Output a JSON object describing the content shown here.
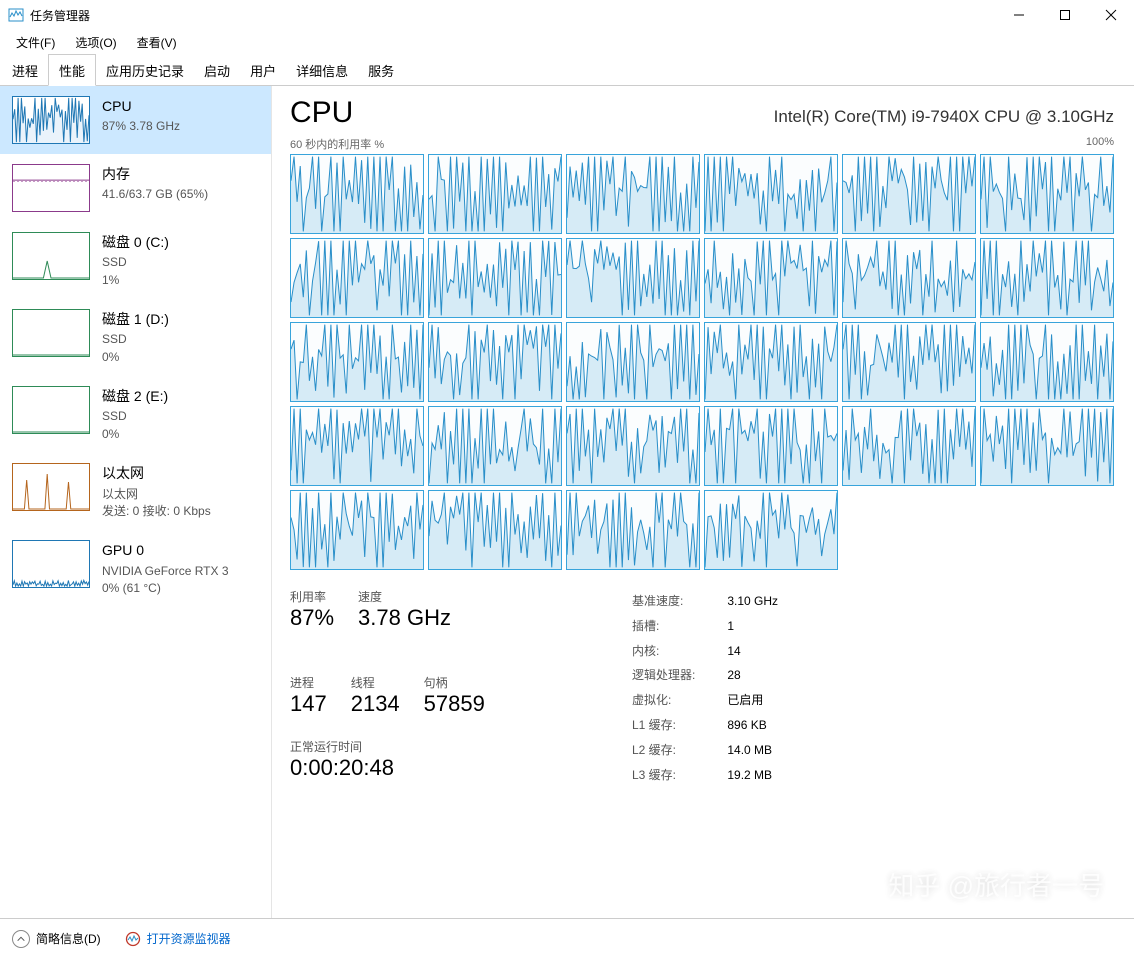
{
  "window": {
    "title": "任务管理器",
    "menus": [
      "文件(F)",
      "选项(O)",
      "查看(V)"
    ],
    "tabs": [
      "进程",
      "性能",
      "应用历史记录",
      "启动",
      "用户",
      "详细信息",
      "服务"
    ],
    "active_tab_index": 1
  },
  "sidebar": {
    "items": [
      {
        "name": "CPU",
        "line1": "87%  3.78 GHz",
        "thumb_border": "#1f77b4",
        "thumb_fill": "#eaf3fb",
        "pattern": "cpu"
      },
      {
        "name": "内存",
        "line1": "41.6/63.7 GB (65%)",
        "thumb_border": "#8b3a8b",
        "thumb_fill": "#ffffff",
        "pattern": "mem"
      },
      {
        "name": "磁盘 0 (C:)",
        "line1": "SSD",
        "line2": "1%",
        "thumb_border": "#2e8b57",
        "thumb_fill": "#ffffff",
        "pattern": "disk_low"
      },
      {
        "name": "磁盘 1 (D:)",
        "line1": "SSD",
        "line2": "0%",
        "thumb_border": "#2e8b57",
        "thumb_fill": "#ffffff",
        "pattern": "disk_zero"
      },
      {
        "name": "磁盘 2 (E:)",
        "line1": "SSD",
        "line2": "0%",
        "thumb_border": "#2e8b57",
        "thumb_fill": "#ffffff",
        "pattern": "disk_zero"
      },
      {
        "name": "以太网",
        "line1": "以太网",
        "line2": "发送: 0  接收: 0 Kbps",
        "thumb_border": "#b5651d",
        "thumb_fill": "#ffffff",
        "pattern": "net"
      },
      {
        "name": "GPU 0",
        "line1": "NVIDIA GeForce RTX 3",
        "line2": "0% (61 °C)",
        "thumb_border": "#1f77b4",
        "thumb_fill": "#ffffff",
        "pattern": "gpu"
      }
    ],
    "selected_index": 0
  },
  "main": {
    "title": "CPU",
    "model": "Intel(R) Core(TM) i9-7940X CPU @ 3.10GHz",
    "axis_left": "60 秒内的利用率 %",
    "axis_right": "100%",
    "core_grid": {
      "cols": 6,
      "count": 28,
      "border_color": "#38a4db",
      "line_color": "#2a8fc9",
      "fill_color": "#d6ebf6",
      "bg": "#fbfdfe",
      "seed_variation": 11
    },
    "stats_left": [
      {
        "lbl": "利用率",
        "val": "87%"
      },
      {
        "lbl": "速度",
        "val": "3.78 GHz"
      },
      {
        "lbl": "进程",
        "val": "147"
      },
      {
        "lbl": "线程",
        "val": "2134"
      },
      {
        "lbl": "句柄",
        "val": "57859"
      }
    ],
    "uptime": {
      "lbl": "正常运行时间",
      "val": "0:00:20:48"
    },
    "stats_right": [
      [
        "基准速度:",
        "3.10 GHz"
      ],
      [
        "插槽:",
        "1"
      ],
      [
        "内核:",
        "14"
      ],
      [
        "逻辑处理器:",
        "28"
      ],
      [
        "虚拟化:",
        "已启用"
      ],
      [
        "L1 缓存:",
        "896 KB"
      ],
      [
        "L2 缓存:",
        "14.0 MB"
      ],
      [
        "L3 缓存:",
        "19.2 MB"
      ]
    ]
  },
  "footer": {
    "fewer": "简略信息(D)",
    "link": "打开资源监视器"
  },
  "watermark": "知乎 @旅行者一号"
}
